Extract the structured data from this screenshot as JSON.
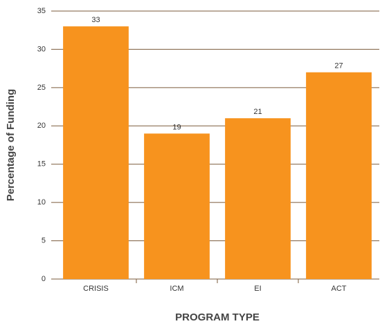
{
  "chart_data": {
    "type": "bar",
    "categories": [
      "CRISIS",
      "ICM",
      "EI",
      "ACT"
    ],
    "values": [
      33,
      19,
      21,
      27
    ],
    "color": "#f7931e",
    "xlabel": "PROGRAM TYPE",
    "ylabel": "Percentage of Funding",
    "ylim": [
      0,
      35
    ],
    "yticks": [
      0,
      5,
      10,
      15,
      20,
      25,
      30,
      35
    ],
    "grid": true
  }
}
